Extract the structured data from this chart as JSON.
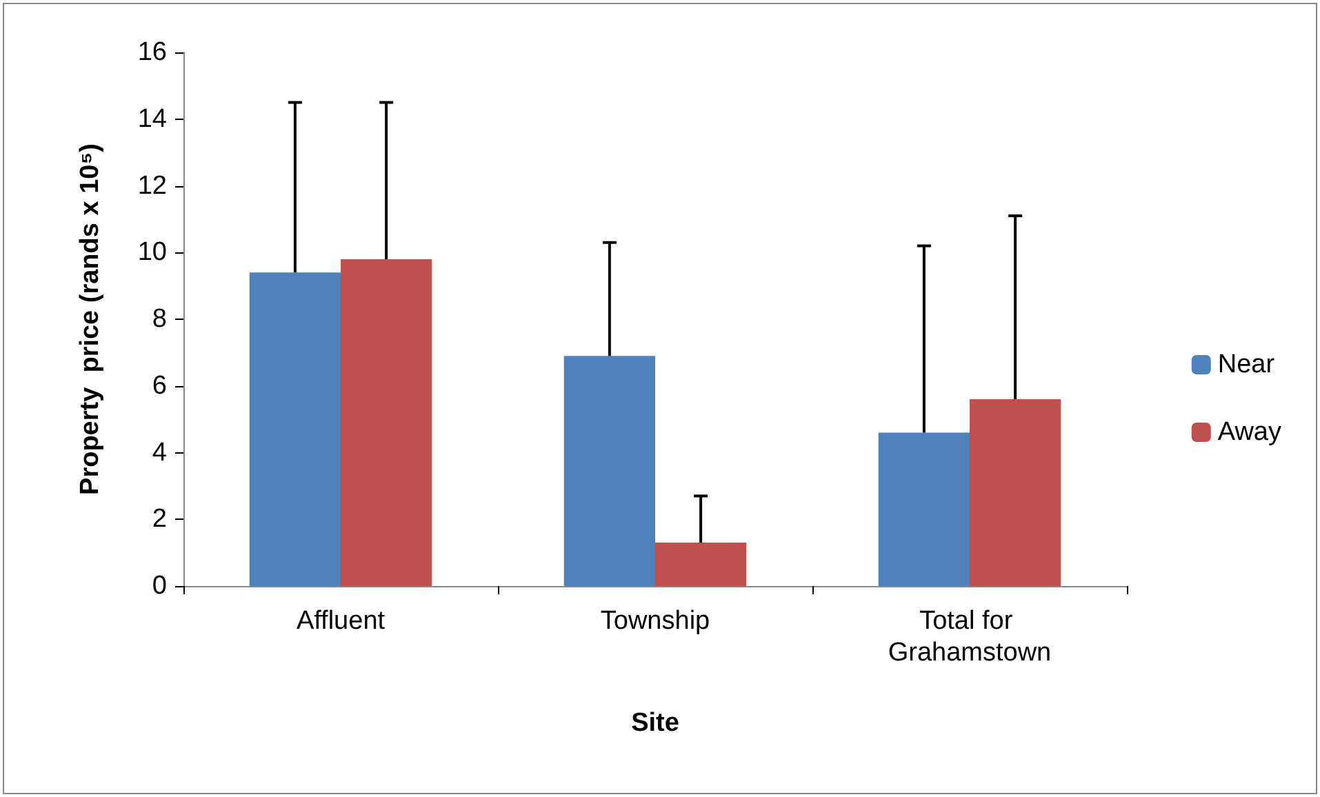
{
  "chart_data": {
    "type": "bar",
    "xlabel": "Site",
    "ylabel": "Property  price (rands x 10⁵)",
    "categories": [
      "Affluent",
      "Township",
      "Total for Grahamstown"
    ],
    "series": [
      {
        "name": "Near",
        "color": "#4f81bd",
        "values": [
          9.4,
          6.9,
          4.6
        ],
        "errors": [
          [
            9.4,
            14.5
          ],
          [
            6.9,
            10.3
          ],
          [
            4.6,
            10.2
          ]
        ]
      },
      {
        "name": "Away",
        "color": "#c0504d",
        "values": [
          9.8,
          1.3,
          5.6
        ],
        "errors": [
          [
            9.8,
            14.5
          ],
          [
            1.3,
            2.7
          ],
          [
            5.6,
            11.1
          ]
        ]
      }
    ],
    "ylim": [
      0,
      16
    ],
    "yticks": [
      0,
      2,
      4,
      6,
      8,
      10,
      12,
      14,
      16
    ],
    "grid": false,
    "legend": "right"
  }
}
